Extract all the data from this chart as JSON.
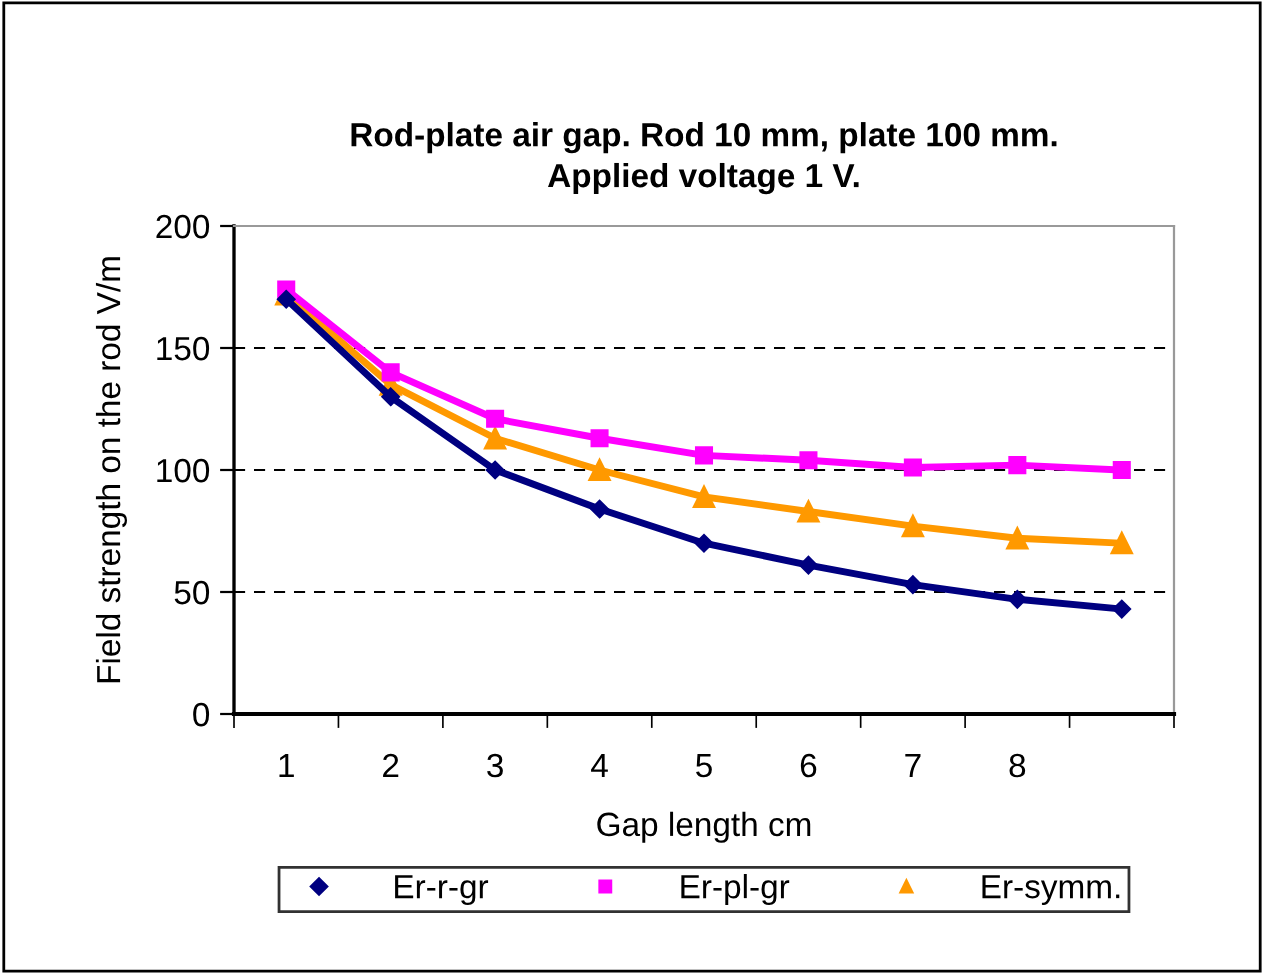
{
  "chart_data": {
    "type": "line",
    "title": "Rod-plate air gap. Rod 10 mm, plate 100 mm.\nApplied voltage 1 V.",
    "xlabel": "Gap length cm",
    "ylabel": "Field strength on the rod V/m",
    "categories": [
      "1",
      "2",
      "3",
      "4",
      "5",
      "6",
      "7",
      "8",
      null
    ],
    "series": [
      {
        "name": "Er-r-gr",
        "color": "#000080",
        "marker": "diamond",
        "values": [
          170,
          130,
          100,
          84,
          70,
          61,
          53,
          47,
          43
        ]
      },
      {
        "name": "Er-pl-gr",
        "color": "#ff00ff",
        "marker": "square",
        "values": [
          174,
          140,
          121,
          113,
          106,
          104,
          101,
          102,
          100
        ]
      },
      {
        "name": "Er-symm.",
        "color": "#ff9900",
        "marker": "triangle",
        "values": [
          172,
          135,
          113,
          100,
          89,
          83,
          77,
          72,
          70
        ]
      }
    ],
    "ylim": [
      0,
      200
    ],
    "yticks": [
      0,
      50,
      100,
      150,
      200
    ],
    "grid": "y",
    "legend": "bottom"
  }
}
